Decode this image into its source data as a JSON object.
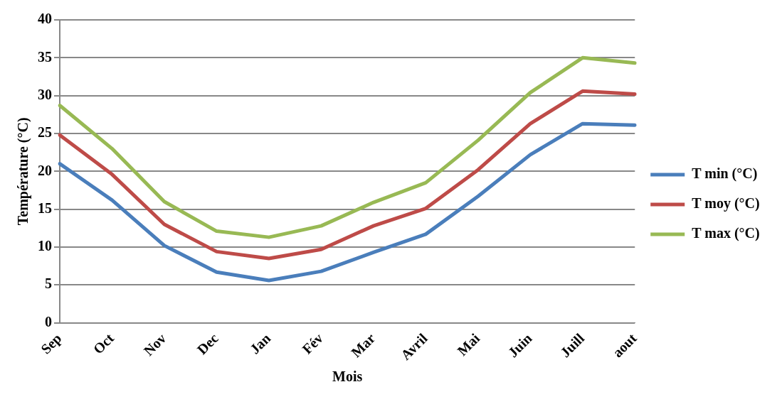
{
  "chart_data": {
    "type": "line",
    "xlabel": "Mois",
    "ylabel": "Température (°C)",
    "categories": [
      "Sep",
      "Oct",
      "Nov",
      "Dec",
      "Jan",
      "Fév",
      "Mar",
      "Avril",
      "Mai",
      "Juin",
      "Juill",
      "aout"
    ],
    "series": [
      {
        "name": "T min (°C)",
        "color": "#4a7ebb",
        "values": [
          21.0,
          16.2,
          10.2,
          6.7,
          5.6,
          6.8,
          9.3,
          11.7,
          16.7,
          22.2,
          26.3,
          26.1
        ]
      },
      {
        "name": "T moy (°C)",
        "color": "#be4b48",
        "values": [
          24.8,
          19.6,
          13.0,
          9.4,
          8.5,
          9.7,
          12.8,
          15.1,
          20.2,
          26.3,
          30.6,
          30.2
        ]
      },
      {
        "name": "T max (°C)",
        "color": "#98b954",
        "values": [
          28.7,
          23.0,
          16.0,
          12.1,
          11.3,
          12.8,
          15.9,
          18.5,
          24.1,
          30.4,
          35.0,
          34.3
        ]
      }
    ],
    "ylim": [
      0,
      40
    ],
    "yticks": [
      0,
      5,
      10,
      15,
      20,
      25,
      30,
      35,
      40
    ],
    "grid": "y",
    "legend": "right",
    "marker": "none",
    "line_style": "solid"
  }
}
